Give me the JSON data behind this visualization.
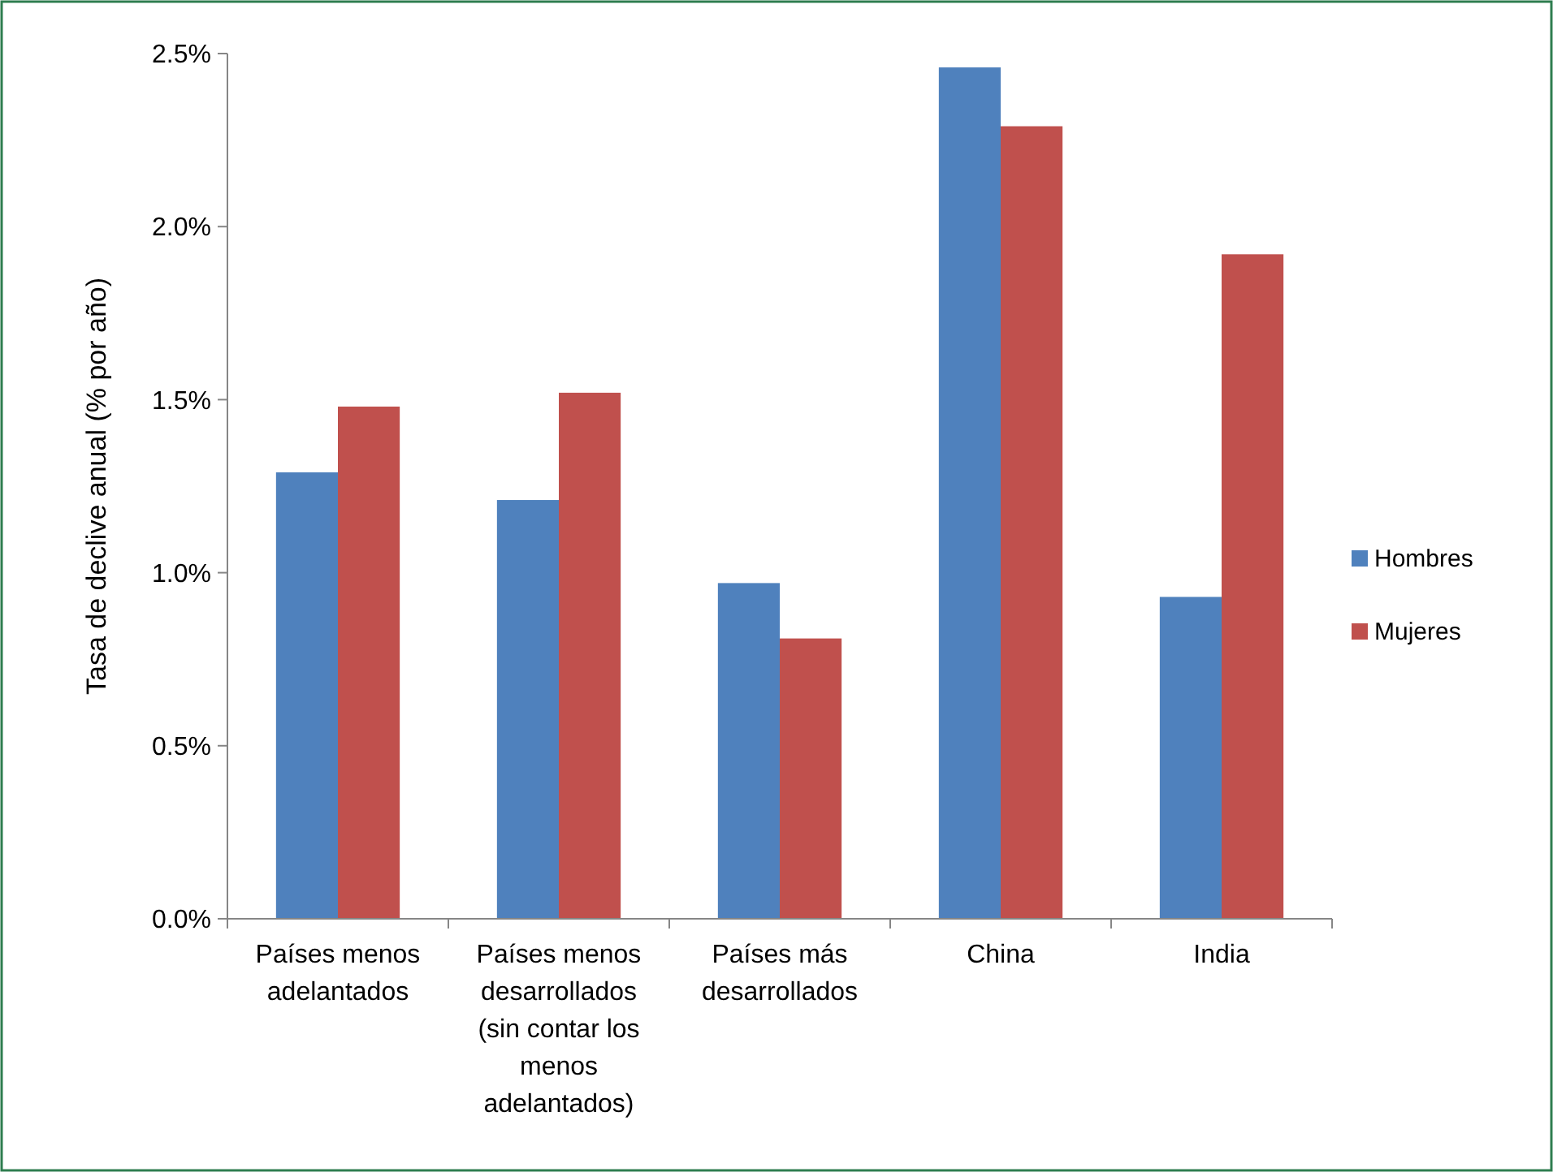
{
  "chart_data": {
    "type": "bar",
    "ylabel": "Tasa de declive anual (% por año)",
    "categories": [
      "Países menos adelantados",
      "Países menos desarrollados (sin contar los menos adelantados)",
      "Países más desarrollados",
      "China",
      "India"
    ],
    "series": [
      {
        "name": "Hombres",
        "color": "#4f81bd",
        "values": [
          1.29,
          1.21,
          0.97,
          2.46,
          0.93
        ]
      },
      {
        "name": "Mujeres",
        "color": "#c0504d",
        "values": [
          1.48,
          1.52,
          0.81,
          2.29,
          1.92
        ]
      }
    ],
    "ylim": [
      0,
      2.5
    ],
    "yticks": [
      {
        "value": 0,
        "label": "0.0%"
      },
      {
        "value": 0.5,
        "label": "0.5%"
      },
      {
        "value": 1,
        "label": "1.0%"
      },
      {
        "value": 1.5,
        "label": "1.5%"
      },
      {
        "value": 2,
        "label": "2.0%"
      },
      {
        "value": 2.5,
        "label": "2.5%"
      }
    ],
    "grid": false,
    "legend": "right"
  }
}
